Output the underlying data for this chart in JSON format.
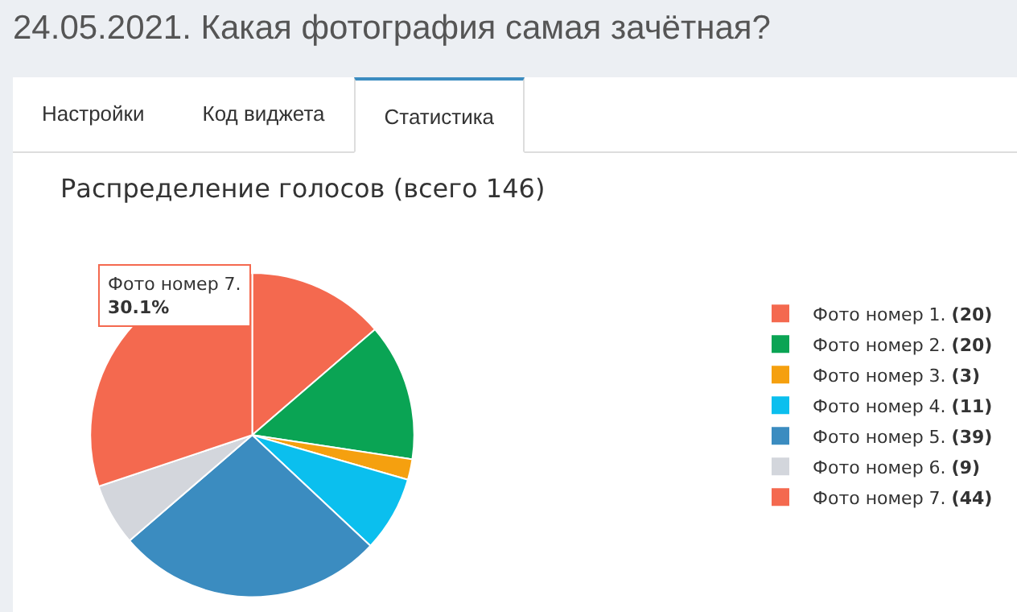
{
  "chart_data": {
    "type": "pie",
    "title": "24.05.2021. Какая фотография самая зачётная?",
    "subtitle": "Распределение голосов (всего 146)",
    "categories": [
      "Фото номер 1.",
      "Фото номер 2.",
      "Фото номер 3.",
      "Фото номер 4.",
      "Фото номер 5.",
      "Фото номер 6.",
      "Фото номер 7."
    ],
    "values": [
      20,
      20,
      3,
      11,
      39,
      9,
      44
    ],
    "value_labels": [
      "(20)",
      "(20)",
      "(3)",
      "(11)",
      "(39)",
      "(9)",
      "(44)"
    ],
    "colors": [
      "#f4694f",
      "#0aa454",
      "#f5a00f",
      "#0bbfee",
      "#3b8cc0",
      "#d3d6dc",
      "#f4694f"
    ],
    "legend": "right",
    "annotations": [
      "Настройки",
      "Код виджета",
      "Статистика",
      "Фото номер 7.\n30.1%"
    ]
  }
}
